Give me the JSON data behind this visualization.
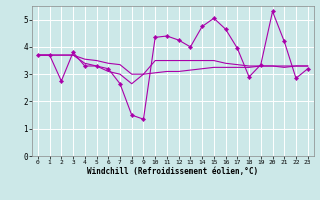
{
  "xlabel": "Windchill (Refroidissement éolien,°C)",
  "bg_color": "#cce8e8",
  "line_color": "#aa00aa",
  "grid_color": "#ffffff",
  "xlim": [
    -0.5,
    23.5
  ],
  "ylim": [
    0,
    5.5
  ],
  "xticks": [
    0,
    1,
    2,
    3,
    4,
    5,
    6,
    7,
    8,
    9,
    10,
    11,
    12,
    13,
    14,
    15,
    16,
    17,
    18,
    19,
    20,
    21,
    22,
    23
  ],
  "yticks": [
    0,
    1,
    2,
    3,
    4,
    5
  ],
  "line1_x": [
    0,
    1,
    2,
    3,
    4,
    5,
    6,
    7,
    8,
    9,
    10,
    11,
    12,
    13,
    14,
    15,
    16,
    17,
    18,
    19,
    20,
    21,
    22,
    23
  ],
  "line1_y": [
    3.7,
    3.7,
    2.75,
    3.8,
    3.3,
    3.3,
    3.2,
    2.65,
    1.5,
    1.35,
    4.35,
    4.4,
    4.25,
    4.0,
    4.75,
    5.05,
    4.65,
    3.95,
    2.9,
    3.35,
    5.3,
    4.2,
    2.85,
    3.2
  ],
  "line2_x": [
    0,
    1,
    2,
    3,
    4,
    5,
    6,
    7,
    8,
    9,
    10,
    11,
    12,
    13,
    14,
    15,
    16,
    17,
    18,
    19,
    20,
    21,
    22,
    23
  ],
  "line2_y": [
    3.7,
    3.7,
    3.7,
    3.7,
    3.55,
    3.5,
    3.4,
    3.35,
    3.0,
    3.0,
    3.5,
    3.5,
    3.5,
    3.5,
    3.5,
    3.5,
    3.4,
    3.35,
    3.3,
    3.3,
    3.3,
    3.3,
    3.3,
    3.3
  ],
  "line3_x": [
    0,
    1,
    2,
    3,
    4,
    5,
    6,
    7,
    8,
    9,
    10,
    11,
    12,
    13,
    14,
    15,
    16,
    17,
    18,
    19,
    20,
    21,
    22,
    23
  ],
  "line3_y": [
    3.7,
    3.7,
    3.7,
    3.7,
    3.4,
    3.3,
    3.1,
    3.0,
    2.65,
    3.0,
    3.05,
    3.1,
    3.1,
    3.15,
    3.2,
    3.25,
    3.25,
    3.25,
    3.25,
    3.3,
    3.3,
    3.25,
    3.3,
    3.3
  ]
}
